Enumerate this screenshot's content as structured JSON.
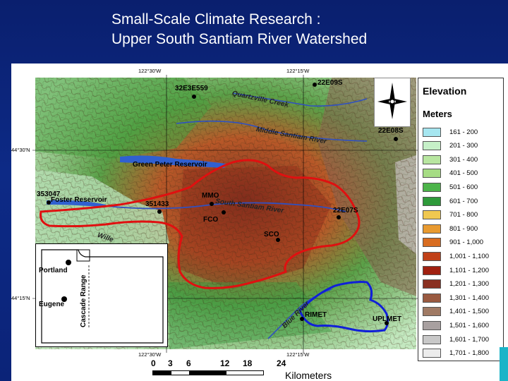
{
  "title": {
    "line1": "Small-Scale Climate Research :",
    "line2": "Upper South Santiam River Watershed"
  },
  "coordinates": {
    "top_left": "122°30'W",
    "top_right": "122°15'W",
    "bottom_left": "122°30'W",
    "bottom_right": "122°15'W",
    "left_upper": "44°30'N",
    "left_lower": "44°15'N"
  },
  "stations": [
    {
      "label": "32E3E559"
    },
    {
      "label": "22E09S"
    },
    {
      "label": "22E08S"
    },
    {
      "label": "353047"
    },
    {
      "label": "351433"
    },
    {
      "label": "MMO"
    },
    {
      "label": "FCO"
    },
    {
      "label": "SCO"
    },
    {
      "label": "22E07S"
    },
    {
      "label": "RIMET"
    },
    {
      "label": "UPLMET"
    }
  ],
  "places": {
    "quartzville": "Quartzville Creek",
    "middle_santiam": "Middle Santiam River",
    "green_peter": "Green Peter Reservoir",
    "foster": "Foster Reservoir",
    "south_santiam": "South Santiam River",
    "blue_river": "Blue River",
    "willamette_partial": "Wille"
  },
  "inset": {
    "portland": "Portland",
    "eugene": "Eugene",
    "cascade": "Cascade Range"
  },
  "legend": {
    "title": "Elevation",
    "subtitle": "Meters",
    "classes": [
      {
        "label": "161 - 200",
        "color": "#a6e6f0"
      },
      {
        "label": "201 - 300",
        "color": "#c6f0c8"
      },
      {
        "label": "301 - 400",
        "color": "#b8e6a0"
      },
      {
        "label": "401 - 500",
        "color": "#a6dc84"
      },
      {
        "label": "501 - 600",
        "color": "#4cb44a"
      },
      {
        "label": "601 - 700",
        "color": "#2e9a3a"
      },
      {
        "label": "701 - 800",
        "color": "#f0c850"
      },
      {
        "label": "801 - 900",
        "color": "#e89a30"
      },
      {
        "label": "901 - 1,000",
        "color": "#d86c20"
      },
      {
        "label": "1,001 - 1,100",
        "color": "#c04018"
      },
      {
        "label": "1,101 - 1,200",
        "color": "#a02010"
      },
      {
        "label": "1,201 - 1,300",
        "color": "#8a3020"
      },
      {
        "label": "1,301 - 1,400",
        "color": "#9a5a40"
      },
      {
        "label": "1,401 - 1,500",
        "color": "#a07a64"
      },
      {
        "label": "1,501 - 1,600",
        "color": "#a8a0a0"
      },
      {
        "label": "1,601 - 1,700",
        "color": "#c8c8c8"
      },
      {
        "label": "1,701 - 1,800",
        "color": "#ececec"
      }
    ]
  },
  "scale": {
    "ticks": [
      "0",
      "3",
      "6",
      "12",
      "18",
      "24"
    ],
    "unit": "Kilometers"
  },
  "colors": {
    "background": "#0b2378",
    "watershed_boundary": "#e01010",
    "subbasin_boundary": "#1020d8"
  },
  "icons": {
    "north_arrow": "north-arrow-icon"
  }
}
